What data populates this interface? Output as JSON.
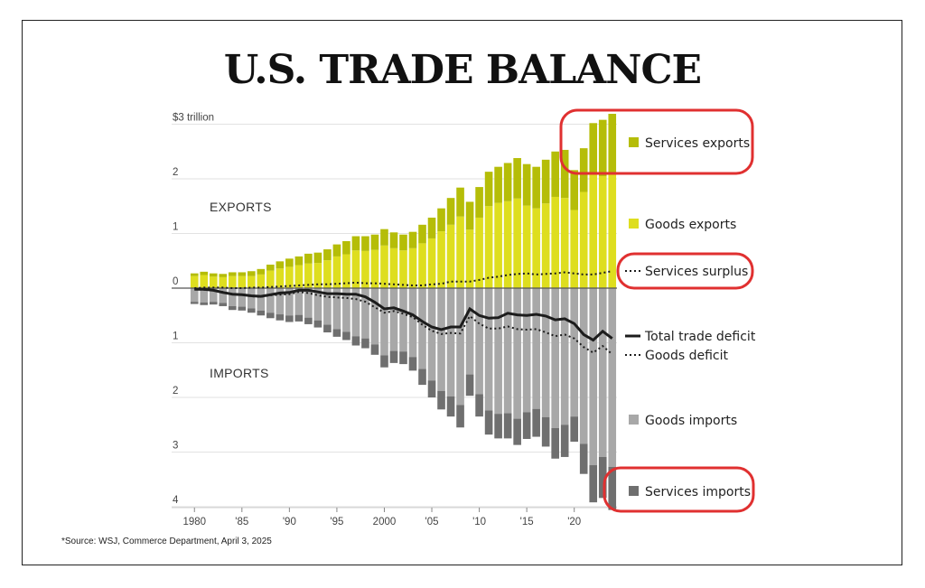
{
  "title": "U.S. TRADE BALANCE",
  "source": "*Source: WSJ, Commerce Department, April 3, 2025",
  "colors": {
    "services_exports": "#b5bd08",
    "goods_exports": "#dede1f",
    "goods_imports": "#a8a8a8",
    "services_imports": "#6f6f6f",
    "highlight": "#e03030",
    "line": "#1c1c1c"
  },
  "chart_data": {
    "type": "bar",
    "x_tick_labels": [
      "1980",
      "'85",
      "'90",
      "'95",
      "2000",
      "'05",
      "'10",
      "'15",
      "'20"
    ],
    "y_tick_labels": [
      "$3 trillion",
      "2",
      "1",
      "0",
      "1",
      "2",
      "3",
      "4"
    ],
    "section_labels": {
      "exports": "EXPORTS",
      "imports": "IMPORTS"
    },
    "years": [
      1980,
      1981,
      1982,
      1983,
      1984,
      1985,
      1986,
      1987,
      1988,
      1989,
      1990,
      1991,
      1992,
      1993,
      1994,
      1995,
      1996,
      1997,
      1998,
      1999,
      2000,
      2001,
      2002,
      2003,
      2004,
      2005,
      2006,
      2007,
      2008,
      2009,
      2010,
      2011,
      2012,
      2013,
      2014,
      2015,
      2016,
      2017,
      2018,
      2019,
      2020,
      2021,
      2022,
      2023,
      2024
    ],
    "series": [
      {
        "name": "Services exports",
        "values": [
          0.05,
          0.06,
          0.06,
          0.06,
          0.07,
          0.07,
          0.09,
          0.1,
          0.11,
          0.13,
          0.15,
          0.16,
          0.18,
          0.19,
          0.2,
          0.22,
          0.24,
          0.26,
          0.27,
          0.28,
          0.3,
          0.29,
          0.29,
          0.3,
          0.34,
          0.38,
          0.42,
          0.49,
          0.53,
          0.51,
          0.56,
          0.63,
          0.66,
          0.7,
          0.74,
          0.76,
          0.76,
          0.8,
          0.83,
          0.88,
          0.73,
          0.8,
          0.93,
          1.03,
          1.1
        ]
      },
      {
        "name": "Goods exports",
        "values": [
          0.22,
          0.24,
          0.21,
          0.2,
          0.22,
          0.22,
          0.22,
          0.25,
          0.32,
          0.36,
          0.39,
          0.42,
          0.45,
          0.46,
          0.51,
          0.58,
          0.62,
          0.69,
          0.68,
          0.7,
          0.78,
          0.73,
          0.69,
          0.73,
          0.82,
          0.91,
          1.04,
          1.16,
          1.31,
          1.07,
          1.29,
          1.5,
          1.56,
          1.59,
          1.64,
          1.51,
          1.46,
          1.55,
          1.67,
          1.65,
          1.43,
          1.76,
          2.09,
          2.05,
          2.09
        ]
      },
      {
        "name": "Goods imports",
        "values": [
          0.25,
          0.26,
          0.25,
          0.27,
          0.33,
          0.34,
          0.37,
          0.41,
          0.45,
          0.48,
          0.5,
          0.49,
          0.54,
          0.59,
          0.67,
          0.75,
          0.8,
          0.88,
          0.92,
          1.03,
          1.23,
          1.15,
          1.16,
          1.26,
          1.48,
          1.69,
          1.88,
          1.98,
          2.14,
          1.58,
          1.94,
          2.24,
          2.3,
          2.29,
          2.39,
          2.27,
          2.21,
          2.36,
          2.56,
          2.5,
          2.35,
          2.85,
          3.24,
          3.09,
          3.27
        ]
      },
      {
        "name": "Services imports",
        "values": [
          0.04,
          0.05,
          0.05,
          0.06,
          0.07,
          0.07,
          0.08,
          0.09,
          0.1,
          0.11,
          0.12,
          0.12,
          0.12,
          0.13,
          0.14,
          0.14,
          0.15,
          0.17,
          0.18,
          0.19,
          0.22,
          0.22,
          0.23,
          0.25,
          0.29,
          0.31,
          0.34,
          0.37,
          0.41,
          0.39,
          0.41,
          0.44,
          0.45,
          0.46,
          0.48,
          0.49,
          0.51,
          0.54,
          0.56,
          0.59,
          0.46,
          0.55,
          0.68,
          0.75,
          0.79
        ]
      },
      {
        "name": "Services surplus",
        "style": "dotted",
        "values": [
          0.0,
          0.01,
          0.01,
          0.01,
          0.0,
          0.0,
          0.01,
          0.01,
          0.02,
          0.03,
          0.04,
          0.05,
          0.06,
          0.07,
          0.07,
          0.08,
          0.09,
          0.1,
          0.09,
          0.09,
          0.08,
          0.07,
          0.06,
          0.05,
          0.05,
          0.07,
          0.08,
          0.12,
          0.12,
          0.12,
          0.15,
          0.19,
          0.21,
          0.24,
          0.26,
          0.27,
          0.25,
          0.26,
          0.27,
          0.29,
          0.27,
          0.25,
          0.25,
          0.28,
          0.31
        ]
      },
      {
        "name": "Total trade deficit",
        "style": "solid",
        "values": [
          0.02,
          0.02,
          0.04,
          0.08,
          0.11,
          0.12,
          0.14,
          0.15,
          0.12,
          0.09,
          0.08,
          0.04,
          0.04,
          0.07,
          0.1,
          0.1,
          0.11,
          0.11,
          0.16,
          0.26,
          0.38,
          0.36,
          0.42,
          0.49,
          0.61,
          0.71,
          0.76,
          0.71,
          0.71,
          0.38,
          0.5,
          0.55,
          0.54,
          0.46,
          0.49,
          0.5,
          0.48,
          0.51,
          0.58,
          0.56,
          0.65,
          0.85,
          0.95,
          0.79,
          0.92
        ]
      },
      {
        "name": "Goods deficit",
        "style": "dotted",
        "values": [
          0.02,
          0.03,
          0.04,
          0.07,
          0.11,
          0.12,
          0.15,
          0.16,
          0.13,
          0.12,
          0.11,
          0.07,
          0.09,
          0.13,
          0.16,
          0.17,
          0.18,
          0.2,
          0.25,
          0.35,
          0.45,
          0.42,
          0.47,
          0.53,
          0.67,
          0.78,
          0.84,
          0.82,
          0.83,
          0.51,
          0.65,
          0.74,
          0.74,
          0.7,
          0.75,
          0.76,
          0.75,
          0.81,
          0.88,
          0.85,
          0.92,
          1.08,
          1.18,
          1.06,
          1.21
        ]
      }
    ],
    "ylim": [
      -4,
      3
    ],
    "grid": true,
    "legend_position": "right"
  }
}
